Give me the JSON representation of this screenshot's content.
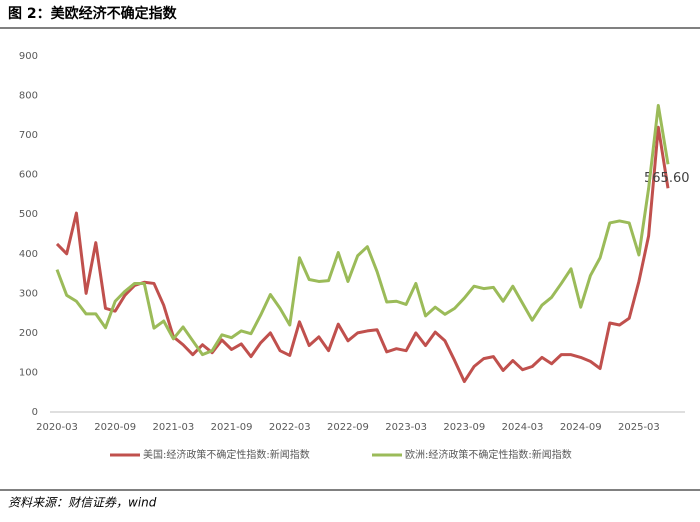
{
  "chart_data": {
    "type": "line",
    "title": "图 2：美欧经济不确定指数",
    "source": "资料来源：财信证券，wind",
    "categories": [
      "2020-03",
      null,
      null,
      null,
      null,
      null,
      "2020-09",
      null,
      null,
      null,
      null,
      null,
      "2021-03",
      null,
      null,
      null,
      null,
      null,
      "2021-09",
      null,
      null,
      null,
      null,
      null,
      "2022-03",
      null,
      null,
      null,
      null,
      null,
      "2022-09",
      null,
      null,
      null,
      null,
      null,
      "2023-03",
      null,
      null,
      null,
      null,
      null,
      "2023-09",
      null,
      null,
      null,
      null,
      null,
      "2024-03",
      null,
      null,
      null,
      null,
      null,
      "2024-09",
      null,
      null,
      null,
      null,
      null,
      "2025-03",
      null,
      null,
      null
    ],
    "series": [
      {
        "name": "美国:经济政策不确定性指数:新闻指数",
        "color": "#c0504d",
        "values": [
          425,
          400,
          503,
          300,
          428,
          262,
          255,
          295,
          320,
          328,
          325,
          270,
          190,
          170,
          145,
          170,
          150,
          182,
          158,
          172,
          140,
          175,
          200,
          155,
          143,
          228,
          168,
          190,
          155,
          222,
          180,
          200,
          205,
          208,
          152,
          160,
          155,
          200,
          168,
          202,
          180,
          130,
          77,
          115,
          135,
          140,
          105,
          130,
          107,
          115,
          138,
          122,
          145,
          145,
          138,
          128,
          110,
          225,
          220,
          237,
          330,
          445,
          720,
          565.6
        ],
        "value_labels": [
          null,
          null,
          null,
          null,
          null,
          null,
          null,
          null,
          null,
          null,
          null,
          null,
          null,
          null,
          null,
          null,
          null,
          null,
          null,
          null,
          null,
          null,
          null,
          null,
          null,
          null,
          null,
          null,
          null,
          null,
          null,
          null,
          null,
          null,
          null,
          null,
          null,
          null,
          null,
          null,
          null,
          null,
          null,
          null,
          null,
          null,
          null,
          null,
          null,
          null,
          null,
          null,
          null,
          null,
          null,
          null,
          null,
          null,
          null,
          null,
          null,
          null,
          null,
          "565.60"
        ]
      },
      {
        "name": "欧洲:经济政策不确定性指数:新闻指数",
        "color": "#9bbb59",
        "values": [
          360,
          295,
          280,
          248,
          248,
          213,
          280,
          305,
          325,
          325,
          212,
          230,
          185,
          215,
          180,
          145,
          155,
          195,
          188,
          205,
          198,
          245,
          297,
          262,
          220,
          390,
          335,
          330,
          332,
          403,
          330,
          395,
          418,
          355,
          278,
          280,
          272,
          325,
          243,
          265,
          247,
          262,
          288,
          318,
          312,
          315,
          280,
          318,
          275,
          232,
          270,
          290,
          325,
          362,
          265,
          345,
          390,
          478,
          483,
          478,
          397,
          565,
          775,
          626.33
        ],
        "value_labels": [
          null,
          null,
          null,
          null,
          null,
          null,
          null,
          null,
          null,
          null,
          null,
          null,
          null,
          null,
          null,
          null,
          null,
          null,
          null,
          null,
          null,
          null,
          null,
          null,
          null,
          null,
          null,
          null,
          null,
          null,
          null,
          null,
          null,
          null,
          null,
          null,
          null,
          null,
          null,
          null,
          null,
          null,
          null,
          null,
          null,
          null,
          null,
          null,
          null,
          null,
          null,
          null,
          null,
          null,
          null,
          null,
          null,
          null,
          null,
          null,
          null,
          null,
          null,
          null
        ]
      }
    ],
    "ylim": [
      0,
      900
    ],
    "yticks": [
      0,
      100,
      200,
      300,
      400,
      500,
      600,
      700,
      800,
      900
    ],
    "grid": false
  }
}
